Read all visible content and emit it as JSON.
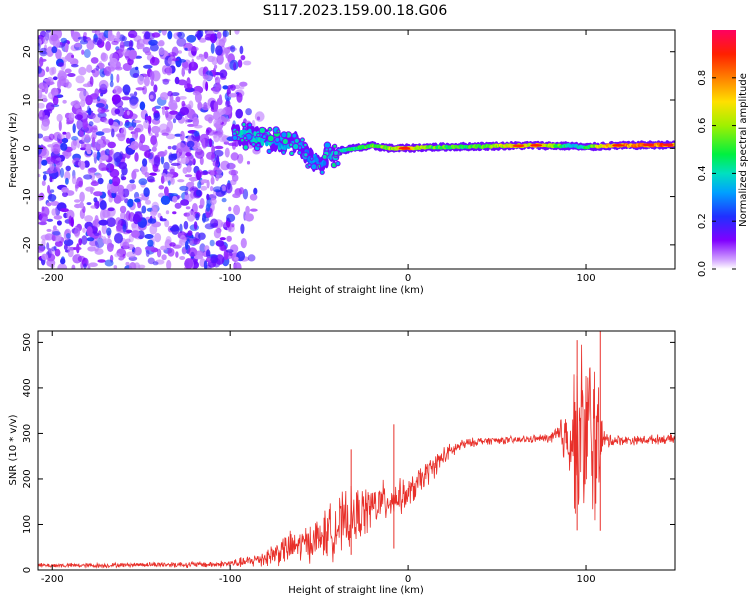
{
  "title": "S117.2023.159.00.18.G06",
  "chart_data": [
    {
      "type": "heatmap",
      "xlabel": "Height of straight line (km)",
      "ylabel": "Frequency (Hz)",
      "xlim": [
        -208,
        150
      ],
      "ylim": [
        -25,
        24.5
      ],
      "xticks": [
        -200,
        -100,
        0,
        100
      ],
      "yticks": [
        -20,
        -10,
        0,
        10,
        20
      ],
      "colorbar": {
        "label": "Normalized spectral amplitude",
        "range": [
          0,
          1
        ],
        "ticks": [
          "0.0",
          "0.2",
          "0.4",
          "0.6",
          "0.8"
        ],
        "colormap": [
          "#ffffff",
          "#c080ff",
          "#8000ff",
          "#3030ff",
          "#00c0ff",
          "#00e060",
          "#c0f000",
          "#ffd000",
          "#ff4000",
          "#ff0060"
        ]
      },
      "noise_region": {
        "x": [
          -208,
          -82
        ],
        "y": [
          -25,
          24.5
        ],
        "amplitude": [
          0.05,
          0.25
        ]
      },
      "signal_trace": [
        {
          "x": -98,
          "y": 3.0,
          "a": 0.35
        },
        {
          "x": -90,
          "y": 2.5,
          "a": 0.38
        },
        {
          "x": -80,
          "y": 2.0,
          "a": 0.35
        },
        {
          "x": -70,
          "y": 1.0,
          "a": 0.32
        },
        {
          "x": -62,
          "y": 1.5,
          "a": 0.35
        },
        {
          "x": -56,
          "y": -2.0,
          "a": 0.3
        },
        {
          "x": -50,
          "y": -3.0,
          "a": 0.3
        },
        {
          "x": -45,
          "y": -1.5,
          "a": 0.32
        },
        {
          "x": -38,
          "y": -0.5,
          "a": 0.4
        },
        {
          "x": -30,
          "y": 0.0,
          "a": 0.45
        },
        {
          "x": -20,
          "y": 0.5,
          "a": 0.55
        },
        {
          "x": -10,
          "y": 0.0,
          "a": 0.6
        },
        {
          "x": 0,
          "y": 0.0,
          "a": 0.75
        },
        {
          "x": 10,
          "y": 0.2,
          "a": 0.55
        },
        {
          "x": 25,
          "y": 0.3,
          "a": 0.5
        },
        {
          "x": 40,
          "y": 0.4,
          "a": 0.5
        },
        {
          "x": 55,
          "y": 0.5,
          "a": 0.65
        },
        {
          "x": 70,
          "y": 0.6,
          "a": 0.7
        },
        {
          "x": 85,
          "y": 0.5,
          "a": 0.55
        },
        {
          "x": 92,
          "y": 0.5,
          "a": 0.35
        },
        {
          "x": 100,
          "y": 0.2,
          "a": 0.45
        },
        {
          "x": 110,
          "y": 0.5,
          "a": 0.7
        },
        {
          "x": 125,
          "y": 0.6,
          "a": 0.75
        },
        {
          "x": 140,
          "y": 0.7,
          "a": 0.8
        },
        {
          "x": 150,
          "y": 0.7,
          "a": 0.8
        }
      ]
    },
    {
      "type": "line",
      "xlabel": "Height of straight line (km)",
      "ylabel": "SNR (10 * v/v)",
      "xlim": [
        -208,
        150
      ],
      "ylim": [
        0,
        525
      ],
      "xticks": [
        -200,
        -100,
        0,
        100
      ],
      "yticks": [
        0,
        100,
        200,
        300,
        400,
        500
      ],
      "series": [
        {
          "color": "#e8302a",
          "x": [
            -208,
            -190,
            -170,
            -150,
            -130,
            -110,
            -100,
            -90,
            -80,
            -70,
            -60,
            -50,
            -40,
            -30,
            -20,
            -10,
            0,
            10,
            20,
            30,
            40,
            50,
            60,
            70,
            80,
            90,
            95,
            100,
            105,
            110,
            120,
            130,
            140,
            150
          ],
          "y": [
            10,
            10,
            10,
            12,
            12,
            12,
            14,
            18,
            28,
            45,
            55,
            70,
            95,
            115,
            140,
            155,
            165,
            210,
            250,
            275,
            283,
            285,
            285,
            288,
            290,
            295,
            290,
            300,
            290,
            285,
            285,
            285,
            287,
            288
          ],
          "noise_amp": [
            6,
            6,
            6,
            6,
            8,
            8,
            10,
            15,
            25,
            40,
            45,
            55,
            80,
            75,
            60,
            50,
            40,
            35,
            25,
            15,
            10,
            10,
            10,
            10,
            12,
            90,
            220,
            250,
            240,
            25,
            12,
            12,
            12,
            12
          ]
        }
      ],
      "spikes": [
        {
          "x": -32,
          "y": 265
        },
        {
          "x": -8,
          "y": 320
        },
        {
          "x": 95,
          "y": 505
        },
        {
          "x": 108,
          "y": 525
        }
      ]
    }
  ]
}
